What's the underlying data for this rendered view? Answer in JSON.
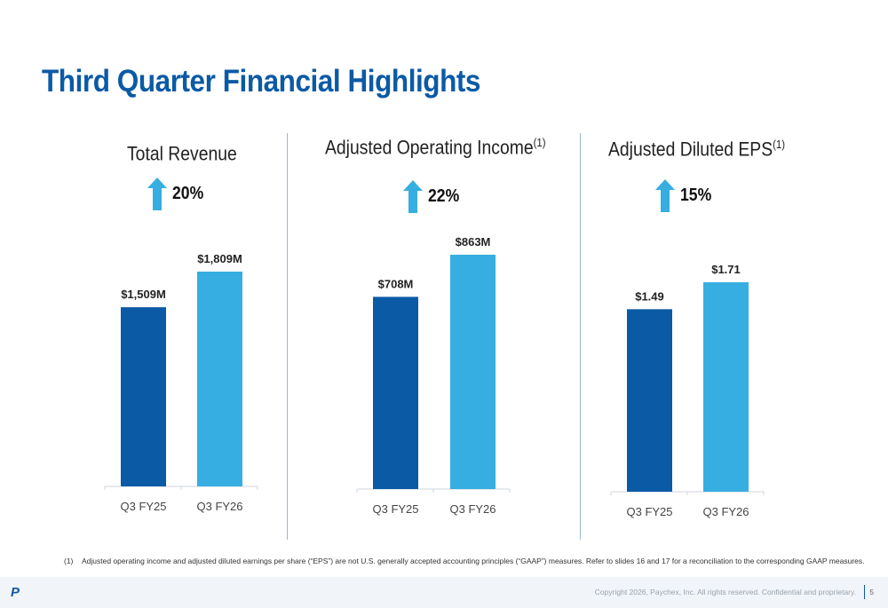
{
  "title": "Third Quarter Financial Highlights",
  "colors": {
    "title": "#0b5aa6",
    "prior": "#0b5aa6",
    "current": "#36aee1",
    "arrow": "#36aee1"
  },
  "chart_data": [
    {
      "type": "bar",
      "title": "Total Revenue",
      "title_sup": "",
      "growth": "20%",
      "categories": [
        "Q3 FY25",
        "Q3 FY26"
      ],
      "values": [
        1509,
        1809
      ],
      "labels": [
        "$1,509M",
        "$1,809M"
      ],
      "unit": "$M"
    },
    {
      "type": "bar",
      "title": "Adjusted Operating Income",
      "title_sup": "(1)",
      "growth": "22%",
      "categories": [
        "Q3 FY25",
        "Q3 FY26"
      ],
      "values": [
        708,
        863
      ],
      "labels": [
        "$708M",
        "$863M"
      ],
      "unit": "$M"
    },
    {
      "type": "bar",
      "title": "Adjusted Diluted EPS",
      "title_sup": "(1)",
      "growth": "15%",
      "categories": [
        "Q3 FY25",
        "Q3 FY26"
      ],
      "values": [
        1.49,
        1.71
      ],
      "labels": [
        "$1.49",
        "$1.71"
      ],
      "unit": "$"
    }
  ],
  "footnote": {
    "number": "(1)",
    "text": "Adjusted operating income and adjusted diluted earnings per share (“EPS”) are not U.S. generally accepted accounting principles (“GAAP”) measures. Refer to slides 16 and 17 for a reconciliation to the corresponding GAAP measures."
  },
  "footer": {
    "logo": "P",
    "copyright": "Copyright 2026, Paychex, Inc. All rights reserved. Confidential and proprietary.",
    "page_number": "5"
  }
}
